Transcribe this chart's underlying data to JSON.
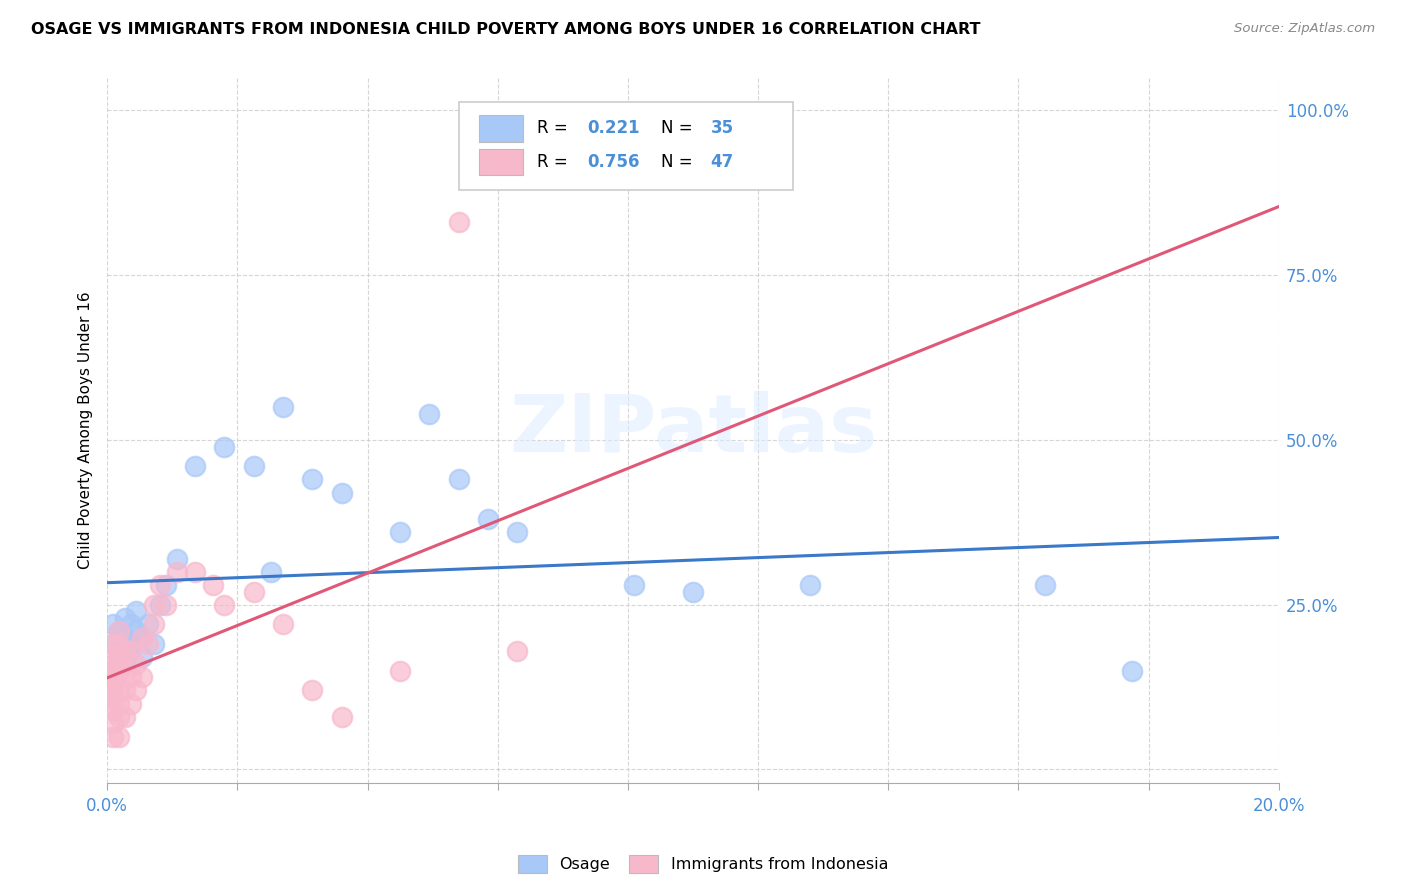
{
  "title": "OSAGE VS IMMIGRANTS FROM INDONESIA CHILD POVERTY AMONG BOYS UNDER 16 CORRELATION CHART",
  "source": "Source: ZipAtlas.com",
  "ylabel": "Child Poverty Among Boys Under 16",
  "xlim": [
    0.0,
    0.2
  ],
  "ylim": [
    -0.02,
    1.05
  ],
  "watermark": "ZIPatlas",
  "legend_labels": [
    "Osage",
    "Immigrants from Indonesia"
  ],
  "blue_color": "#a8c8f8",
  "pink_color": "#f8b8cc",
  "blue_line_color": "#3a78c9",
  "pink_line_color": "#e05878",
  "R_blue": 0.221,
  "N_blue": 35,
  "R_pink": 0.756,
  "N_pink": 47,
  "osage_x": [
    0.001,
    0.001,
    0.002,
    0.002,
    0.003,
    0.003,
    0.003,
    0.004,
    0.004,
    0.005,
    0.005,
    0.006,
    0.006,
    0.007,
    0.008,
    0.009,
    0.01,
    0.012,
    0.015,
    0.02,
    0.025,
    0.028,
    0.03,
    0.035,
    0.04,
    0.05,
    0.055,
    0.06,
    0.065,
    0.07,
    0.09,
    0.1,
    0.12,
    0.16,
    0.175
  ],
  "osage_y": [
    0.22,
    0.19,
    0.21,
    0.18,
    0.23,
    0.2,
    0.16,
    0.22,
    0.19,
    0.21,
    0.24,
    0.2,
    0.17,
    0.22,
    0.19,
    0.25,
    0.28,
    0.32,
    0.46,
    0.49,
    0.46,
    0.3,
    0.55,
    0.44,
    0.42,
    0.36,
    0.54,
    0.44,
    0.38,
    0.36,
    0.28,
    0.27,
    0.28,
    0.28,
    0.15
  ],
  "indonesia_x": [
    0.001,
    0.001,
    0.001,
    0.001,
    0.001,
    0.001,
    0.001,
    0.001,
    0.001,
    0.001,
    0.001,
    0.001,
    0.002,
    0.002,
    0.002,
    0.002,
    0.002,
    0.002,
    0.002,
    0.002,
    0.003,
    0.003,
    0.003,
    0.003,
    0.004,
    0.004,
    0.004,
    0.005,
    0.005,
    0.006,
    0.006,
    0.007,
    0.008,
    0.008,
    0.009,
    0.01,
    0.012,
    0.015,
    0.018,
    0.02,
    0.025,
    0.03,
    0.035,
    0.04,
    0.05,
    0.06,
    0.07
  ],
  "indonesia_y": [
    0.05,
    0.07,
    0.09,
    0.1,
    0.11,
    0.12,
    0.13,
    0.14,
    0.15,
    0.16,
    0.17,
    0.19,
    0.05,
    0.08,
    0.1,
    0.12,
    0.15,
    0.17,
    0.19,
    0.21,
    0.08,
    0.12,
    0.15,
    0.18,
    0.1,
    0.14,
    0.18,
    0.12,
    0.16,
    0.14,
    0.2,
    0.19,
    0.22,
    0.25,
    0.28,
    0.25,
    0.3,
    0.3,
    0.28,
    0.25,
    0.27,
    0.22,
    0.12,
    0.08,
    0.15,
    0.83,
    0.18
  ]
}
